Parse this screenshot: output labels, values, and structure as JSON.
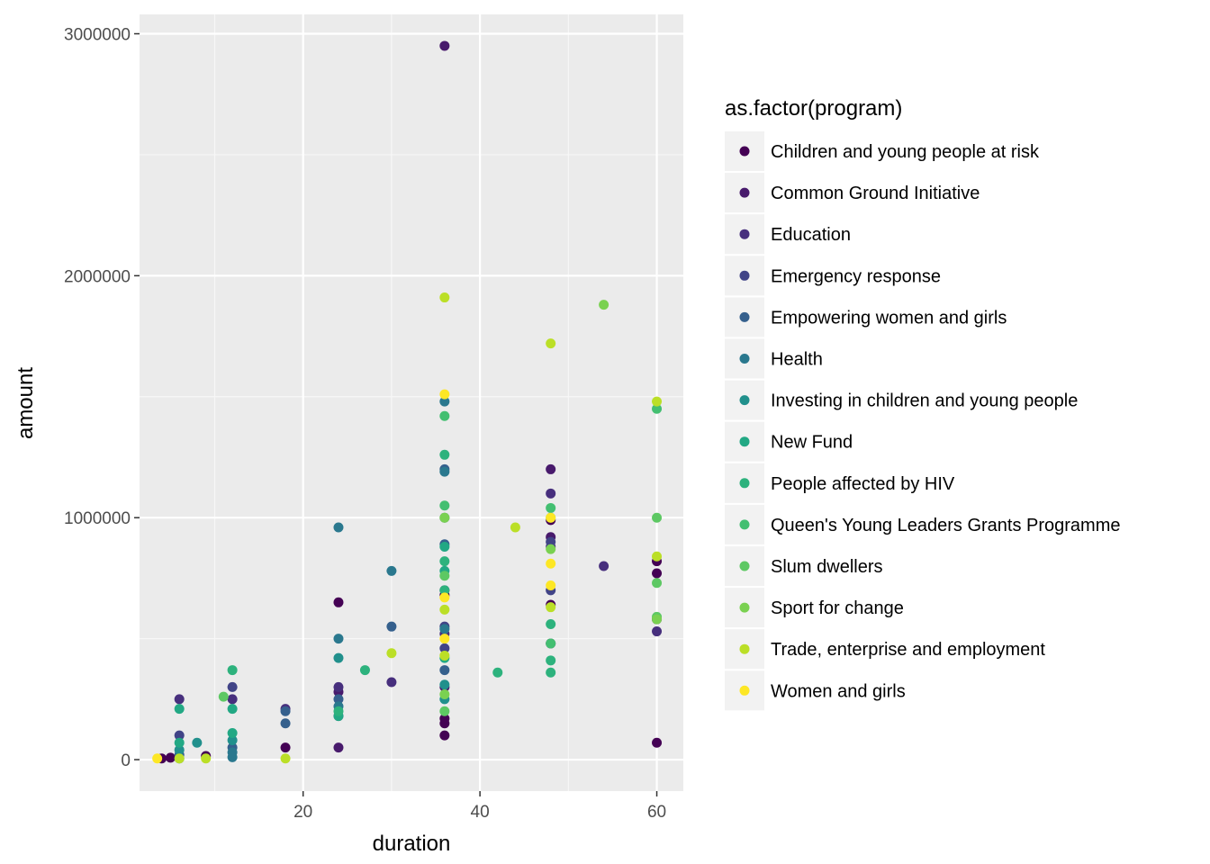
{
  "chart_data": {
    "type": "scatter",
    "title": "",
    "xlabel": "duration",
    "ylabel": "amount",
    "xlim": [
      1.5,
      63
    ],
    "ylim": [
      -130000,
      3080000
    ],
    "x_ticks": [
      20,
      40,
      60
    ],
    "x_tick_labels": [
      "20",
      "40",
      "60"
    ],
    "y_ticks": [
      0,
      1000000,
      2000000,
      3000000
    ],
    "y_tick_labels": [
      "0",
      "1000000",
      "2000000",
      "3000000"
    ],
    "grid": true,
    "legend_position": "right",
    "legend_title": "as.factor(program)",
    "series": [
      {
        "name": "Children and young people at risk",
        "color": "#440154",
        "points": [
          [
            4,
            5000
          ],
          [
            5,
            8000
          ],
          [
            9,
            15000
          ],
          [
            18,
            50000
          ],
          [
            24,
            650000
          ],
          [
            36,
            100000
          ],
          [
            36,
            150000
          ],
          [
            36,
            170000
          ],
          [
            36,
            680000
          ],
          [
            48,
            640000
          ],
          [
            48,
            990000
          ],
          [
            60,
            70000
          ],
          [
            60,
            580000
          ],
          [
            60,
            770000
          ],
          [
            60,
            820000
          ]
        ]
      },
      {
        "name": "Common Ground Initiative",
        "color": "#481A6C",
        "points": [
          [
            24,
            50000
          ],
          [
            24,
            280000
          ],
          [
            36,
            2950000
          ],
          [
            36,
            700000
          ],
          [
            36,
            300000
          ],
          [
            48,
            1200000
          ],
          [
            48,
            920000
          ],
          [
            48,
            480000
          ]
        ]
      },
      {
        "name": "Education",
        "color": "#472F7D",
        "points": [
          [
            6,
            250000
          ],
          [
            12,
            250000
          ],
          [
            18,
            210000
          ],
          [
            24,
            300000
          ],
          [
            30,
            320000
          ],
          [
            36,
            520000
          ],
          [
            48,
            1100000
          ],
          [
            48,
            880000
          ],
          [
            54,
            800000
          ],
          [
            60,
            530000
          ]
        ]
      },
      {
        "name": "Emergency response",
        "color": "#414487",
        "points": [
          [
            6,
            100000
          ],
          [
            12,
            300000
          ],
          [
            24,
            180000
          ],
          [
            36,
            550000
          ],
          [
            36,
            460000
          ],
          [
            48,
            900000
          ],
          [
            48,
            700000
          ]
        ]
      },
      {
        "name": "Empowering women and girls",
        "color": "#35608D",
        "points": [
          [
            6,
            20000
          ],
          [
            12,
            50000
          ],
          [
            18,
            150000
          ],
          [
            18,
            200000
          ],
          [
            24,
            250000
          ],
          [
            30,
            550000
          ],
          [
            36,
            1200000
          ],
          [
            36,
            1000000
          ],
          [
            36,
            890000
          ],
          [
            36,
            370000
          ]
        ]
      },
      {
        "name": "Health",
        "color": "#2A788E",
        "points": [
          [
            6,
            5000
          ],
          [
            12,
            10000
          ],
          [
            12,
            30000
          ],
          [
            24,
            960000
          ],
          [
            24,
            500000
          ],
          [
            24,
            220000
          ],
          [
            30,
            780000
          ],
          [
            36,
            1480000
          ],
          [
            36,
            1190000
          ],
          [
            36,
            540000
          ]
        ]
      },
      {
        "name": "Investing in children and young people",
        "color": "#21908C",
        "points": [
          [
            6,
            40000
          ],
          [
            8,
            70000
          ],
          [
            12,
            80000
          ],
          [
            24,
            420000
          ],
          [
            36,
            310000
          ],
          [
            36,
            250000
          ]
        ]
      },
      {
        "name": "New Fund",
        "color": "#22A884",
        "points": [
          [
            6,
            210000
          ],
          [
            6,
            70000
          ],
          [
            12,
            210000
          ],
          [
            12,
            110000
          ],
          [
            24,
            180000
          ],
          [
            36,
            880000
          ],
          [
            36,
            780000
          ],
          [
            36,
            420000
          ]
        ]
      },
      {
        "name": "People affected by HIV",
        "color": "#2DB27D",
        "points": [
          [
            12,
            370000
          ],
          [
            24,
            200000
          ],
          [
            27,
            370000
          ],
          [
            36,
            1260000
          ],
          [
            36,
            820000
          ],
          [
            36,
            700000
          ],
          [
            42,
            360000
          ],
          [
            48,
            560000
          ],
          [
            48,
            410000
          ],
          [
            48,
            360000
          ]
        ]
      },
      {
        "name": "Queen's Young Leaders Grants Programme",
        "color": "#43BF71",
        "points": [
          [
            36,
            1420000
          ],
          [
            36,
            1050000
          ],
          [
            48,
            1040000
          ],
          [
            48,
            480000
          ],
          [
            60,
            1450000
          ]
        ]
      },
      {
        "name": "Slum dwellers",
        "color": "#5DC863",
        "points": [
          [
            11,
            260000
          ],
          [
            36,
            760000
          ],
          [
            36,
            200000
          ],
          [
            48,
            1000000
          ],
          [
            60,
            1000000
          ],
          [
            60,
            730000
          ],
          [
            60,
            590000
          ]
        ]
      },
      {
        "name": "Sport for change",
        "color": "#7AD151",
        "points": [
          [
            36,
            1000000
          ],
          [
            36,
            270000
          ],
          [
            48,
            870000
          ],
          [
            54,
            1880000
          ],
          [
            60,
            580000
          ]
        ]
      },
      {
        "name": "Trade, enterprise and employment",
        "color": "#BBDF27",
        "points": [
          [
            6,
            5000
          ],
          [
            9,
            5000
          ],
          [
            18,
            5000
          ],
          [
            30,
            440000
          ],
          [
            36,
            1910000
          ],
          [
            36,
            620000
          ],
          [
            36,
            430000
          ],
          [
            44,
            960000
          ],
          [
            48,
            1720000
          ],
          [
            48,
            630000
          ],
          [
            60,
            1480000
          ],
          [
            60,
            840000
          ]
        ]
      },
      {
        "name": "Women and girls",
        "color": "#FDE725",
        "points": [
          [
            3.5,
            5000
          ],
          [
            36,
            1510000
          ],
          [
            36,
            670000
          ],
          [
            36,
            500000
          ],
          [
            48,
            810000
          ],
          [
            48,
            720000
          ],
          [
            48,
            1000000
          ]
        ]
      }
    ]
  }
}
